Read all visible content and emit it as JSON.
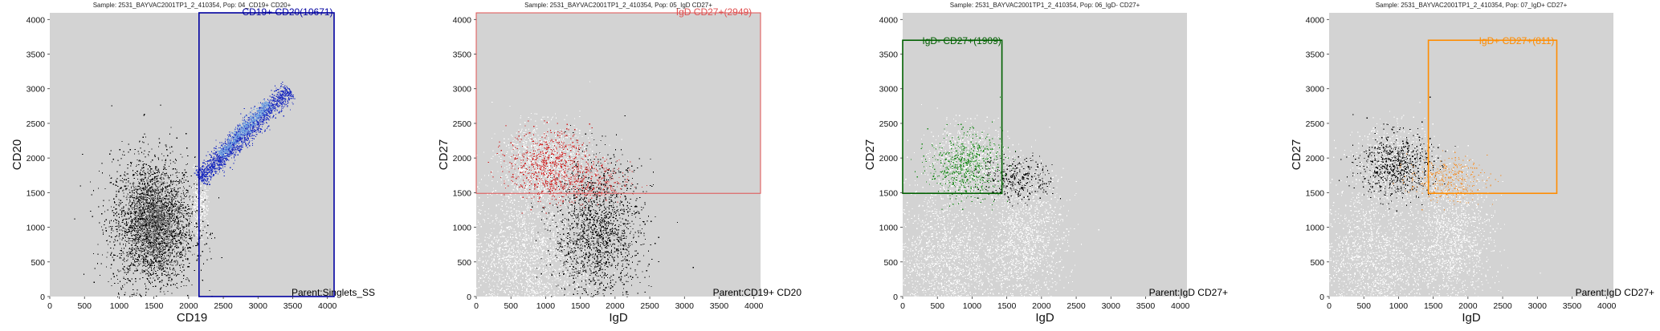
{
  "chart_data": [
    {
      "type": "scatter",
      "title": "Sample: 2531_BAYVAC2001TP1_2_410354, Pop: 04_CD19+ CD20+",
      "xlabel": "CD19",
      "ylabel": "CD20",
      "xlim": [
        0,
        4096
      ],
      "ylim": [
        0,
        4096
      ],
      "xticks": [
        0,
        500,
        1000,
        1500,
        2000,
        2500,
        3000,
        3500,
        4000
      ],
      "yticks": [
        0,
        500,
        1000,
        1500,
        2000,
        2500,
        3000,
        3500,
        4000
      ],
      "background": "#d3d3d3",
      "gate": {
        "label": "CD19+ CD20(10671)",
        "x": [
          2150,
          4096
        ],
        "y": [
          0,
          4096
        ],
        "color": "#0000a0"
      },
      "parent_label": "Parent:Singlets_SS",
      "populations": [
        {
          "center": [
            1480,
            1050
          ],
          "spread": [
            300,
            480
          ],
          "shape": "blob",
          "color": "#000000",
          "count": 0.9
        },
        {
          "center": [
            1500,
            1100
          ],
          "spread": [
            180,
            280
          ],
          "shape": "blob",
          "color": "#6a6a6a",
          "count": 0.35
        },
        {
          "center": [
            2150,
            1300
          ],
          "spread": [
            60,
            200
          ],
          "shape": "blob",
          "color": "#ffffff",
          "count": 0.08
        },
        {
          "start": [
            2150,
            1700
          ],
          "end": [
            3450,
            3000
          ],
          "width": 70,
          "shape": "diag",
          "color": "#2030c0",
          "count": 0.55
        },
        {
          "start": [
            2450,
            2050
          ],
          "end": [
            3150,
            2800
          ],
          "width": 40,
          "shape": "diag",
          "color": "#70a0e0",
          "count": 0.2
        }
      ]
    },
    {
      "type": "scatter",
      "title": "Sample: 2531_BAYVAC2001TP1_2_410354, Pop: 05_IgD CD27+",
      "xlabel": "IgD",
      "ylabel": "CD27",
      "xlim": [
        0,
        4096
      ],
      "ylim": [
        0,
        4096
      ],
      "xticks": [
        0,
        500,
        1000,
        1500,
        2000,
        2500,
        3000,
        3500,
        4000
      ],
      "yticks": [
        0,
        500,
        1000,
        1500,
        2000,
        2500,
        3000,
        3500,
        4000
      ],
      "background": "#d3d3d3",
      "gate": {
        "label": "IgD CD27+(2949)",
        "x": [
          0,
          4096
        ],
        "y": [
          1490,
          4096
        ],
        "color": "#e05050"
      },
      "parent_label": "Parent:CD19+ CD20",
      "populations": [
        {
          "center": [
            700,
            500
          ],
          "spread": [
            450,
            550
          ],
          "shape": "blob",
          "color": "#ffffff",
          "count": 0.7
        },
        {
          "center": [
            1750,
            900
          ],
          "spread": [
            320,
            520
          ],
          "shape": "blob",
          "color": "#000000",
          "count": 0.55
        },
        {
          "center": [
            1000,
            1950
          ],
          "spread": [
            330,
            270
          ],
          "shape": "blob",
          "color": "#ffffff",
          "count": 0.35
        },
        {
          "center": [
            1050,
            1900
          ],
          "spread": [
            300,
            250
          ],
          "shape": "blob",
          "color": "#d02020",
          "count": 0.22
        },
        {
          "center": [
            1650,
            1650
          ],
          "spread": [
            280,
            150
          ],
          "shape": "blob",
          "color": "#d04040",
          "count": 0.08
        }
      ]
    },
    {
      "type": "scatter",
      "title": "Sample: 2531_BAYVAC2001TP1_2_410354, Pop: 06_IgD- CD27+",
      "xlabel": "IgD",
      "ylabel": "CD27",
      "xlim": [
        0,
        4096
      ],
      "ylim": [
        0,
        4096
      ],
      "xticks": [
        0,
        500,
        1000,
        1500,
        2000,
        2500,
        3000,
        3500,
        4000
      ],
      "yticks": [
        0,
        500,
        1000,
        1500,
        2000,
        2500,
        3000,
        3500,
        4000
      ],
      "background": "#d3d3d3",
      "gate": {
        "label": "IgD- CD27+(1909)",
        "x": [
          0,
          1430
        ],
        "y": [
          1490,
          3700
        ],
        "color": "#006000"
      },
      "parent_label": "Parent:IgD CD27+",
      "populations": [
        {
          "center": [
            600,
            500
          ],
          "spread": [
            400,
            550
          ],
          "shape": "blob",
          "color": "#ffffff",
          "count": 0.55
        },
        {
          "center": [
            1750,
            800
          ],
          "spread": [
            300,
            500
          ],
          "shape": "blob",
          "color": "#ffffff",
          "count": 0.45
        },
        {
          "center": [
            950,
            1950
          ],
          "spread": [
            290,
            260
          ],
          "shape": "blob",
          "color": "#ffffff",
          "count": 0.25
        },
        {
          "center": [
            900,
            1900
          ],
          "spread": [
            260,
            230
          ],
          "shape": "blob",
          "color": "#1a8a1a",
          "count": 0.2
        },
        {
          "center": [
            1650,
            1700
          ],
          "spread": [
            260,
            160
          ],
          "shape": "blob",
          "color": "#000000",
          "count": 0.1
        }
      ]
    },
    {
      "type": "scatter",
      "title": "Sample: 2531_BAYVAC2001TP1_2_410354, Pop: 07_IgD+ CD27+",
      "xlabel": "IgD",
      "ylabel": "CD27",
      "xlim": [
        0,
        4096
      ],
      "ylim": [
        0,
        4096
      ],
      "xticks": [
        0,
        500,
        1000,
        1500,
        2000,
        2500,
        3000,
        3500,
        4000
      ],
      "yticks": [
        0,
        500,
        1000,
        1500,
        2000,
        2500,
        3000,
        3500,
        4000
      ],
      "background": "#d3d3d3",
      "gate": {
        "label": "IgD+ CD27+(811)",
        "x": [
          1430,
          3280
        ],
        "y": [
          1490,
          3700
        ],
        "color": "#ff8c00"
      },
      "parent_label": "Parent:IgD CD27+",
      "populations": [
        {
          "center": [
            600,
            500
          ],
          "spread": [
            400,
            550
          ],
          "shape": "blob",
          "color": "#ffffff",
          "count": 0.55
        },
        {
          "center": [
            1750,
            800
          ],
          "spread": [
            300,
            500
          ],
          "shape": "blob",
          "color": "#ffffff",
          "count": 0.45
        },
        {
          "center": [
            950,
            1950
          ],
          "spread": [
            290,
            260
          ],
          "shape": "blob",
          "color": "#ffffff",
          "count": 0.2
        },
        {
          "center": [
            950,
            1900
          ],
          "spread": [
            260,
            230
          ],
          "shape": "blob",
          "color": "#000000",
          "count": 0.22
        },
        {
          "center": [
            1700,
            1700
          ],
          "spread": [
            280,
            160
          ],
          "shape": "blob",
          "color": "#f09030",
          "count": 0.1
        }
      ]
    }
  ]
}
